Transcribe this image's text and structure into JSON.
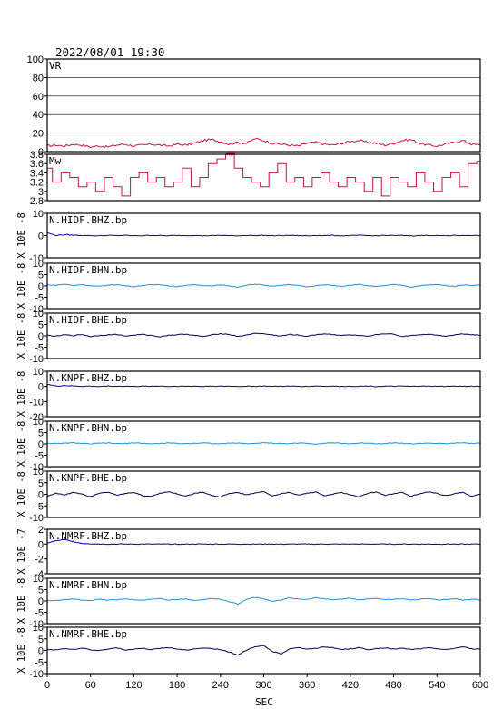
{
  "header": {
    "title": "2022/08/01  19:30"
  },
  "chart_data": {
    "type": "line",
    "xlabel": "SEC",
    "xlim": [
      0,
      600
    ],
    "xticks": [
      0,
      60,
      120,
      180,
      240,
      300,
      360,
      420,
      480,
      540,
      600
    ],
    "panels": [
      {
        "id": "vr",
        "name": "VR",
        "ylabel": "",
        "ylim": [
          0,
          100
        ],
        "yticks": [
          0,
          20,
          40,
          60,
          80,
          100
        ],
        "grid": true,
        "color": "#d0103c",
        "style": "noisy",
        "y": [
          6,
          7,
          6,
          8,
          7,
          5,
          6,
          5,
          7,
          8,
          6,
          7,
          8,
          7,
          6,
          8,
          7,
          9,
          12,
          13,
          11,
          8,
          10,
          9,
          14,
          12,
          9,
          8,
          7,
          6,
          9,
          10,
          8,
          7,
          9,
          11,
          12,
          10,
          9,
          7,
          9,
          12,
          13,
          9,
          7,
          6,
          8,
          10,
          12,
          8,
          7
        ]
      },
      {
        "id": "mw",
        "name": "Mw",
        "ylabel": "",
        "ylim": [
          2.8,
          3.8
        ],
        "yticks": [
          2.8,
          3.0,
          3.2,
          3.4,
          3.6,
          3.8
        ],
        "grid": false,
        "color": "#d0103c",
        "style": "step",
        "y": [
          3.5,
          3.2,
          3.4,
          3.3,
          3.1,
          3.2,
          3.0,
          3.3,
          3.1,
          2.9,
          3.3,
          3.4,
          3.2,
          3.3,
          3.1,
          3.2,
          3.5,
          3.1,
          3.3,
          3.6,
          3.7,
          3.85,
          3.5,
          3.3,
          3.2,
          3.1,
          3.4,
          3.6,
          3.2,
          3.3,
          3.1,
          3.3,
          3.4,
          3.2,
          3.1,
          3.3,
          3.2,
          3.0,
          3.3,
          2.9,
          3.3,
          3.2,
          3.1,
          3.4,
          3.2,
          3.0,
          3.3,
          3.4,
          3.1,
          3.6,
          3.65
        ]
      },
      {
        "id": "hidf-bhz",
        "name": "N.HIDF.BHZ.bp",
        "ylabel": "X 10E -8",
        "ylim": [
          -10,
          10
        ],
        "yticks": [
          -10,
          0,
          10
        ],
        "grid": false,
        "color": "#0000a0",
        "style": "smooth",
        "y": [
          1.2,
          0.1,
          0.4,
          0.2,
          0.1,
          0.0,
          -0.1,
          0.1,
          0.0,
          0.1,
          -0.1,
          0.0,
          0.1,
          0.0,
          -0.1,
          0.1,
          0.0,
          0.1,
          -0.1,
          0.0,
          0.1,
          0.0,
          -0.1,
          0.1,
          0.0,
          0.1,
          -0.1,
          0.0,
          0.1,
          0.0,
          -0.1,
          0.1,
          0.0,
          0.1,
          -0.1,
          0.0,
          0.1,
          0.0,
          -0.1,
          0.1,
          0.0,
          0.1,
          -0.1,
          0.0,
          0.1,
          0.0,
          -0.1,
          0.1,
          0.0,
          0.1,
          0.0
        ]
      },
      {
        "id": "hidf-bhn",
        "name": "N.HIDF.BHN.bp",
        "ylabel": "X 10E -8",
        "ylim": [
          -10,
          10
        ],
        "yticks": [
          -10,
          -5,
          0,
          5,
          10
        ],
        "grid": false,
        "color": "#1e90d8",
        "style": "smooth",
        "y": [
          0.5,
          0.3,
          0.8,
          0.2,
          0.6,
          0.1,
          -0.2,
          0.4,
          0.6,
          0.1,
          -0.3,
          0.2,
          0.5,
          0.7,
          0.1,
          -0.4,
          0.3,
          0.6,
          0.2,
          -0.1,
          0.5,
          0.1,
          -0.6,
          0.3,
          0.8,
          0.4,
          -0.2,
          0.3,
          0.6,
          0.2,
          -0.4,
          0.1,
          0.5,
          0.3,
          -0.2,
          0.4,
          0.7,
          0.1,
          -0.3,
          0.2,
          0.6,
          0.3,
          -0.5,
          0.1,
          0.4,
          0.6,
          0.2,
          -0.2,
          0.5,
          0.3,
          0.4
        ]
      },
      {
        "id": "hidf-bhe",
        "name": "N.HIDF.BHE.bp",
        "ylabel": "X 10E -8",
        "ylim": [
          -10,
          10
        ],
        "yticks": [
          -10,
          -5,
          0,
          5,
          10
        ],
        "grid": false,
        "color": "#000050",
        "style": "smooth",
        "y": [
          0.3,
          -0.2,
          0.5,
          0.1,
          0.6,
          -0.3,
          0.2,
          0.4,
          0.7,
          -0.1,
          0.3,
          0.6,
          0.2,
          -0.4,
          0.3,
          0.5,
          0.8,
          0.2,
          -0.3,
          0.4,
          1.0,
          0.6,
          -0.2,
          0.3,
          1.2,
          0.9,
          0.4,
          -0.1,
          0.6,
          0.3,
          -0.2,
          0.5,
          0.9,
          0.6,
          0.2,
          0.4,
          0.1,
          -0.3,
          0.5,
          1.0,
          0.7,
          -0.3,
          0.2,
          0.5,
          0.8,
          0.3,
          -0.1,
          0.4,
          0.9,
          0.6,
          0.2
        ]
      },
      {
        "id": "knpf-bhz",
        "name": "N.KNPF.BHZ.bp",
        "ylabel": "X 10E -8",
        "ylim": [
          -20,
          10
        ],
        "yticks": [
          -20,
          -10,
          0,
          10
        ],
        "grid": false,
        "color": "#0000a0",
        "style": "smooth",
        "y": [
          1.5,
          0.2,
          0.6,
          0.3,
          0.1,
          0.2,
          0.0,
          0.3,
          0.1,
          0.2,
          0.0,
          0.2,
          0.1,
          0.3,
          0.0,
          0.2,
          0.1,
          0.2,
          0.0,
          0.3,
          0.1,
          0.2,
          0.0,
          0.2,
          0.1,
          0.3,
          0.0,
          0.2,
          0.1,
          0.2,
          0.0,
          0.3,
          0.1,
          0.2,
          0.0,
          0.2,
          0.1,
          0.3,
          0.0,
          0.2,
          0.1,
          0.2,
          0.0,
          0.3,
          0.1,
          0.2,
          0.0,
          0.2,
          0.1,
          0.2,
          0.1
        ]
      },
      {
        "id": "knpf-bhn",
        "name": "N.KNPF.BHN.bp",
        "ylabel": "X 10E -8",
        "ylim": [
          -10,
          10
        ],
        "yticks": [
          -10,
          -5,
          0,
          5,
          10
        ],
        "grid": false,
        "color": "#1e90d8",
        "style": "smooth",
        "y": [
          0.4,
          0.1,
          0.3,
          0.5,
          0.2,
          0.0,
          0.3,
          0.4,
          0.1,
          0.2,
          0.5,
          0.3,
          0.0,
          0.2,
          0.4,
          0.2,
          0.1,
          0.3,
          0.5,
          0.2,
          0.0,
          0.3,
          0.4,
          0.1,
          0.2,
          0.6,
          0.3,
          0.1,
          0.2,
          0.4,
          0.2,
          0.0,
          0.3,
          0.5,
          0.2,
          0.1,
          0.3,
          0.4,
          0.1,
          0.2,
          0.5,
          0.3,
          0.0,
          0.2,
          0.4,
          0.2,
          0.1,
          0.3,
          0.5,
          0.2,
          0.3
        ]
      },
      {
        "id": "knpf-bhe",
        "name": "N.KNPF.BHE.bp",
        "ylabel": "X 10E -8",
        "ylim": [
          -10,
          10
        ],
        "yticks": [
          -10,
          -5,
          0,
          5,
          10
        ],
        "grid": false,
        "color": "#000050",
        "style": "smooth",
        "y": [
          -0.8,
          0.5,
          -0.3,
          0.9,
          0.2,
          -1.0,
          0.6,
          1.0,
          -0.4,
          0.3,
          0.9,
          -0.6,
          -0.9,
          0.5,
          1.1,
          0.2,
          -0.8,
          0.4,
          1.0,
          -0.5,
          -1.1,
          0.3,
          0.8,
          -0.2,
          0.6,
          1.2,
          -0.7,
          0.2,
          0.9,
          -0.4,
          0.5,
          1.0,
          -0.6,
          0.1,
          0.8,
          -0.3,
          -1.0,
          0.4,
          1.1,
          -0.5,
          0.3,
          0.9,
          -0.8,
          0.2,
          1.0,
          0.4,
          -0.6,
          0.3,
          0.9,
          -0.9,
          0.1
        ]
      },
      {
        "id": "nmrf-bhz",
        "name": "N.NMRF.BHZ.bp",
        "ylabel": "X 10E -7",
        "ylim": [
          -4,
          2
        ],
        "yticks": [
          -4,
          -2,
          0,
          2
        ],
        "grid": false,
        "color": "#0000a0",
        "style": "smooth",
        "y": [
          0.15,
          0.45,
          0.6,
          0.35,
          0.1,
          0.05,
          0.02,
          0.0,
          0.01,
          0.0,
          0.0,
          0.01,
          0.0,
          0.0,
          0.01,
          0.0,
          0.0,
          0.01,
          0.0,
          0.0,
          0.01,
          0.0,
          0.0,
          0.01,
          0.0,
          0.0,
          0.01,
          0.0,
          0.0,
          0.01,
          0.0,
          0.0,
          0.01,
          0.0,
          0.0,
          0.01,
          0.0,
          0.0,
          0.01,
          0.0,
          0.0,
          0.01,
          0.0,
          0.0,
          0.01,
          0.0,
          0.0,
          0.01,
          0.0,
          0.0,
          0.0
        ]
      },
      {
        "id": "nmrf-bhn",
        "name": "N.NMRF.BHN.bp",
        "ylabel": "X 10E -8",
        "ylim": [
          -10,
          10
        ],
        "yticks": [
          -10,
          -5,
          0,
          5,
          10
        ],
        "grid": false,
        "color": "#1e90d8",
        "style": "smooth",
        "y": [
          0.3,
          0.1,
          0.6,
          0.9,
          0.3,
          0.2,
          0.7,
          0.4,
          0.6,
          0.9,
          0.5,
          0.3,
          0.8,
          1.0,
          0.4,
          0.6,
          0.9,
          0.2,
          0.5,
          1.1,
          0.7,
          -0.3,
          -1.4,
          0.6,
          1.6,
          1.0,
          -0.2,
          0.4,
          1.3,
          0.9,
          0.6,
          1.4,
          1.0,
          0.5,
          0.8,
          1.2,
          0.4,
          0.9,
          1.1,
          0.6,
          0.8,
          1.0,
          0.4,
          0.7,
          1.2,
          0.5,
          0.6,
          1.0,
          0.4,
          0.7,
          0.5
        ]
      },
      {
        "id": "nmrf-bhe",
        "name": "N.NMRF.BHE.bp",
        "ylabel": "X 10E -8",
        "ylim": [
          -10,
          10
        ],
        "yticks": [
          -10,
          -5,
          0,
          5,
          10
        ],
        "grid": false,
        "color": "#000050",
        "style": "smooth",
        "y": [
          0.5,
          0.2,
          0.8,
          0.4,
          1.0,
          0.3,
          -0.1,
          0.6,
          1.1,
          0.2,
          0.5,
          1.0,
          0.4,
          0.9,
          1.2,
          0.6,
          0.1,
          0.7,
          1.0,
          0.8,
          0.3,
          -0.6,
          -2.0,
          0.2,
          1.5,
          2.0,
          -0.4,
          -1.6,
          0.8,
          1.3,
          0.5,
          0.9,
          1.6,
          1.1,
          0.4,
          0.7,
          1.2,
          0.3,
          0.8,
          1.0,
          0.6,
          0.9,
          0.4,
          0.7,
          1.1,
          0.8,
          0.3,
          0.9,
          1.6,
          0.7,
          0.5
        ]
      }
    ]
  }
}
